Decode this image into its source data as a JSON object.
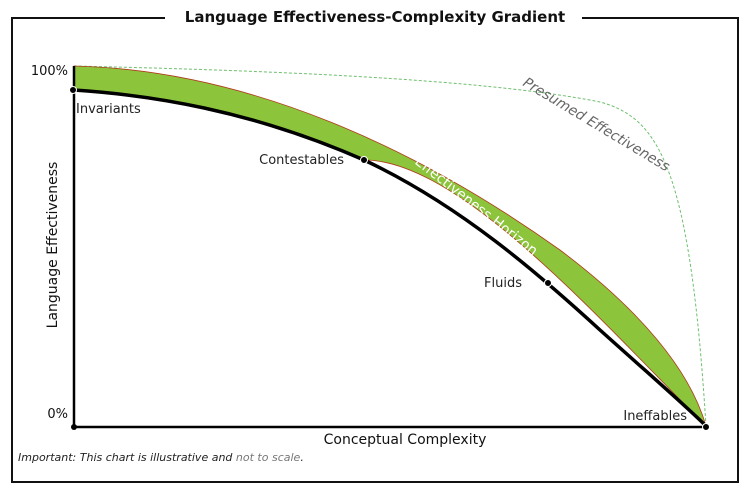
{
  "title": "Language Effectiveness-Complexity Gradient",
  "axes": {
    "y_label": "Language Effectiveness",
    "x_label": "Conceptual Complexity",
    "y_top": "100%",
    "y_bottom": "0%"
  },
  "points": {
    "invariants": "Invariants",
    "contestables": "Contestables",
    "fluids": "Fluids",
    "ineffables": "Ineffables"
  },
  "curves": {
    "presumed": "Presumed Effectiveness",
    "horizon": "Effectiveness Horizon"
  },
  "colors": {
    "band_fill": "#8cc43c",
    "band_edge": "#b03a1a",
    "presumed_line": "#6fbf6f",
    "actual_line": "#000000",
    "frame": "#111111"
  },
  "note": {
    "prefix": "Important",
    "text_a": " This chart is illustrative and ",
    "text_b": "not to scale",
    "text_c": "."
  }
}
